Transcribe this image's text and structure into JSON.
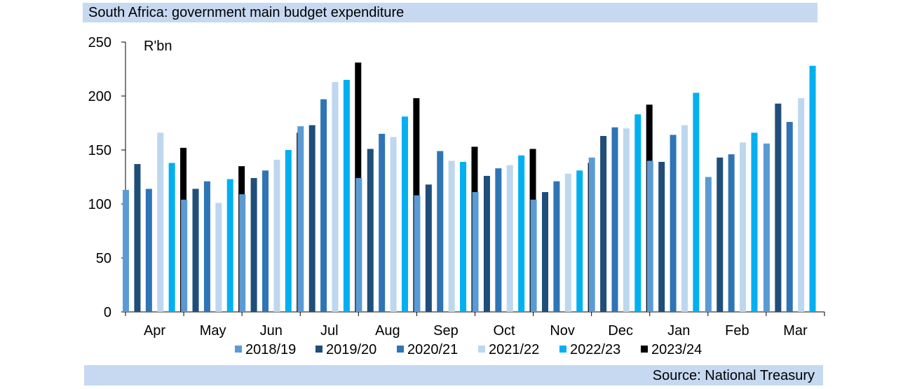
{
  "header": {
    "title": "South Africa: government main budget expenditure"
  },
  "footer": {
    "source": "Source: National Treasury"
  },
  "chart_data": {
    "type": "bar",
    "title": "South Africa: government main budget expenditure",
    "ylabel": "R'bn",
    "xlabel": "",
    "ylim": [
      0,
      250
    ],
    "yticks": [
      0,
      50,
      100,
      150,
      200,
      250
    ],
    "grid": false,
    "legend_position": "bottom",
    "categories": [
      "Apr",
      "May",
      "Jun",
      "Jul",
      "Aug",
      "Sep",
      "Oct",
      "Nov",
      "Dec",
      "Jan",
      "Feb",
      "Mar"
    ],
    "series": [
      {
        "name": "2018/19",
        "color": "#5b9bd5",
        "values": [
          113,
          104,
          109,
          172,
          124,
          108,
          111,
          104,
          143,
          140,
          125,
          156
        ]
      },
      {
        "name": "2019/20",
        "color": "#1f4e79",
        "values": [
          137,
          114,
          124,
          173,
          151,
          118,
          126,
          111,
          163,
          139,
          143,
          193
        ]
      },
      {
        "name": "2020/21",
        "color": "#2e75b6",
        "values": [
          114,
          121,
          131,
          197,
          165,
          149,
          133,
          121,
          171,
          164,
          146,
          176
        ]
      },
      {
        "name": "2021/22",
        "color": "#bdd7ee",
        "values": [
          166,
          101,
          141,
          213,
          162,
          140,
          136,
          128,
          170,
          173,
          157,
          198
        ]
      },
      {
        "name": "2022/23",
        "color": "#00b0f0",
        "values": [
          138,
          123,
          150,
          215,
          181,
          139,
          145,
          131,
          183,
          203,
          166,
          228
        ]
      },
      {
        "name": "2023/24",
        "color": "#000000",
        "values": [
          152,
          135,
          166,
          231,
          198,
          153,
          151,
          138,
          192,
          null,
          null,
          null
        ]
      }
    ]
  }
}
